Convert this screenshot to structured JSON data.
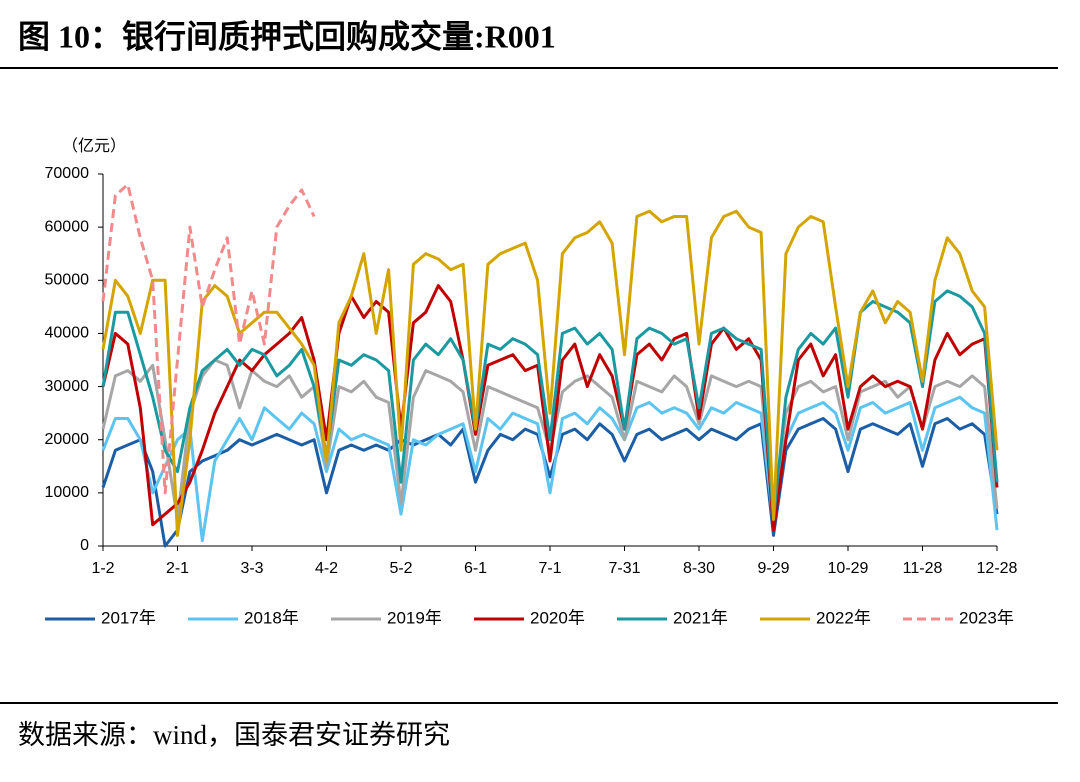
{
  "chart_data": {
    "type": "line",
    "title": "图 10：银行间质押式回购成交量:R001",
    "y_label": "（亿元）",
    "source": "数据来源：wind，国泰君安证券研究",
    "categories": [
      "1-2",
      null,
      null,
      null,
      null,
      null,
      "2-1",
      null,
      null,
      null,
      null,
      null,
      "3-3",
      null,
      null,
      null,
      null,
      null,
      "4-2",
      null,
      null,
      null,
      null,
      null,
      "5-2",
      null,
      null,
      null,
      null,
      null,
      "6-1",
      null,
      null,
      null,
      null,
      null,
      "7-1",
      null,
      null,
      null,
      null,
      null,
      "7-31",
      null,
      null,
      null,
      null,
      null,
      "8-30",
      null,
      null,
      null,
      null,
      null,
      "9-29",
      null,
      null,
      null,
      null,
      null,
      "10-29",
      null,
      null,
      null,
      null,
      null,
      "11-28",
      null,
      null,
      null,
      null,
      null,
      "12-28"
    ],
    "ylim": [
      0,
      70000
    ],
    "yticks": [
      0,
      10000,
      20000,
      30000,
      40000,
      50000,
      60000,
      70000
    ],
    "grid": false,
    "legend": "bottom",
    "series": [
      {
        "name": "2017年",
        "color": "#1b5ea6",
        "dashed": false,
        "values": [
          11000,
          18000,
          19000,
          20000,
          14000,
          0,
          3000,
          14000,
          16000,
          17000,
          18000,
          20000,
          19000,
          20000,
          21000,
          20000,
          19000,
          20000,
          10000,
          18000,
          19000,
          18000,
          19000,
          18000,
          20000,
          19000,
          20000,
          21000,
          19000,
          22000,
          12000,
          18000,
          21000,
          20000,
          22000,
          21000,
          13000,
          21000,
          22000,
          20000,
          23000,
          21000,
          16000,
          21000,
          22000,
          20000,
          21000,
          22000,
          20000,
          22000,
          21000,
          20000,
          22000,
          23000,
          2000,
          18000,
          22000,
          23000,
          24000,
          22000,
          14000,
          22000,
          23000,
          22000,
          21000,
          23000,
          15000,
          23000,
          24000,
          22000,
          23000,
          21000,
          6000
        ]
      },
      {
        "name": "2018年",
        "color": "#5bc4f0",
        "dashed": false,
        "values": [
          18000,
          24000,
          24000,
          20000,
          10000,
          15000,
          20000,
          22000,
          1000,
          16000,
          20000,
          24000,
          20000,
          26000,
          24000,
          22000,
          25000,
          23000,
          14000,
          22000,
          20000,
          21000,
          20000,
          19000,
          6000,
          20000,
          19000,
          21000,
          22000,
          23000,
          14000,
          24000,
          22000,
          25000,
          24000,
          23000,
          10000,
          24000,
          25000,
          23000,
          26000,
          24000,
          20000,
          26000,
          27000,
          25000,
          26000,
          25000,
          22000,
          26000,
          25000,
          27000,
          26000,
          25000,
          4000,
          20000,
          25000,
          26000,
          27000,
          25000,
          18000,
          26000,
          27000,
          25000,
          26000,
          27000,
          18000,
          26000,
          27000,
          28000,
          26000,
          25000,
          3000
        ]
      },
      {
        "name": "2019年",
        "color": "#a6a6a6",
        "dashed": false,
        "values": [
          22000,
          32000,
          33000,
          31000,
          34000,
          20000,
          5000,
          25000,
          32000,
          35000,
          34000,
          26000,
          33000,
          31000,
          30000,
          32000,
          28000,
          30000,
          15000,
          30000,
          29000,
          31000,
          28000,
          27000,
          8000,
          28000,
          33000,
          32000,
          31000,
          29000,
          18000,
          30000,
          29000,
          28000,
          27000,
          26000,
          18000,
          29000,
          31000,
          32000,
          30000,
          28000,
          20000,
          31000,
          30000,
          29000,
          32000,
          30000,
          23000,
          32000,
          31000,
          30000,
          31000,
          30000,
          5000,
          25000,
          30000,
          31000,
          29000,
          30000,
          20000,
          29000,
          30000,
          31000,
          28000,
          30000,
          22000,
          30000,
          31000,
          30000,
          32000,
          30000,
          7000
        ]
      },
      {
        "name": "2020年",
        "color": "#c00000",
        "dashed": false,
        "values": [
          30000,
          40000,
          38000,
          26000,
          4000,
          6000,
          8000,
          12000,
          18000,
          25000,
          30000,
          35000,
          33000,
          36000,
          38000,
          40000,
          43000,
          35000,
          20000,
          40000,
          47000,
          43000,
          46000,
          44000,
          22000,
          42000,
          44000,
          49000,
          46000,
          35000,
          21000,
          34000,
          35000,
          36000,
          33000,
          34000,
          16000,
          35000,
          38000,
          30000,
          36000,
          32000,
          22000,
          36000,
          38000,
          35000,
          39000,
          40000,
          24000,
          38000,
          41000,
          37000,
          39000,
          35000,
          3000,
          20000,
          35000,
          38000,
          32000,
          36000,
          22000,
          30000,
          32000,
          30000,
          31000,
          30000,
          22000,
          35000,
          40000,
          36000,
          38000,
          39000,
          11000
        ]
      },
      {
        "name": "2021年",
        "color": "#1a9aa0",
        "dashed": false,
        "values": [
          30000,
          44000,
          44000,
          36000,
          28000,
          18000,
          14000,
          26000,
          33000,
          35000,
          37000,
          34000,
          37000,
          36000,
          32000,
          34000,
          37000,
          30000,
          17000,
          35000,
          34000,
          36000,
          35000,
          33000,
          12000,
          35000,
          38000,
          36000,
          39000,
          35000,
          22000,
          38000,
          37000,
          39000,
          38000,
          36000,
          20000,
          40000,
          41000,
          38000,
          40000,
          37000,
          22000,
          39000,
          41000,
          40000,
          38000,
          39000,
          26000,
          40000,
          41000,
          39000,
          38000,
          37000,
          5000,
          28000,
          37000,
          40000,
          38000,
          41000,
          28000,
          44000,
          46000,
          45000,
          44000,
          42000,
          30000,
          46000,
          48000,
          47000,
          45000,
          40000,
          12000
        ]
      },
      {
        "name": "2022年",
        "color": "#d4a500",
        "dashed": false,
        "values": [
          37000,
          50000,
          47000,
          40000,
          50000,
          50000,
          2000,
          20000,
          46000,
          49000,
          47000,
          40000,
          42000,
          44000,
          44000,
          41000,
          38000,
          34000,
          16000,
          42000,
          47000,
          55000,
          40000,
          52000,
          18000,
          53000,
          55000,
          54000,
          52000,
          53000,
          22000,
          53000,
          55000,
          56000,
          57000,
          50000,
          25000,
          55000,
          58000,
          59000,
          61000,
          57000,
          36000,
          62000,
          63000,
          61000,
          62000,
          62000,
          38000,
          58000,
          62000,
          63000,
          60000,
          59000,
          5000,
          55000,
          60000,
          62000,
          61000,
          45000,
          30000,
          44000,
          48000,
          42000,
          46000,
          44000,
          31000,
          50000,
          58000,
          55000,
          48000,
          45000,
          18000
        ]
      },
      {
        "name": "2023年",
        "color": "#f4898b",
        "dashed": true,
        "values": [
          46000,
          66000,
          68000,
          58000,
          50000,
          10000,
          35000,
          60000,
          45000,
          52000,
          58000,
          38000,
          48000,
          38000,
          60000,
          64000,
          67000,
          62000,
          null,
          null,
          null,
          null,
          null,
          null,
          null,
          null,
          null,
          null,
          null,
          null,
          null,
          null,
          null,
          null,
          null,
          null,
          null,
          null,
          null,
          null,
          null,
          null,
          null,
          null,
          null,
          null,
          null,
          null,
          null,
          null,
          null,
          null,
          null,
          null,
          null,
          null,
          null,
          null,
          null,
          null,
          null,
          null,
          null,
          null,
          null,
          null,
          null,
          null,
          null,
          null,
          null,
          null,
          null
        ]
      }
    ]
  }
}
